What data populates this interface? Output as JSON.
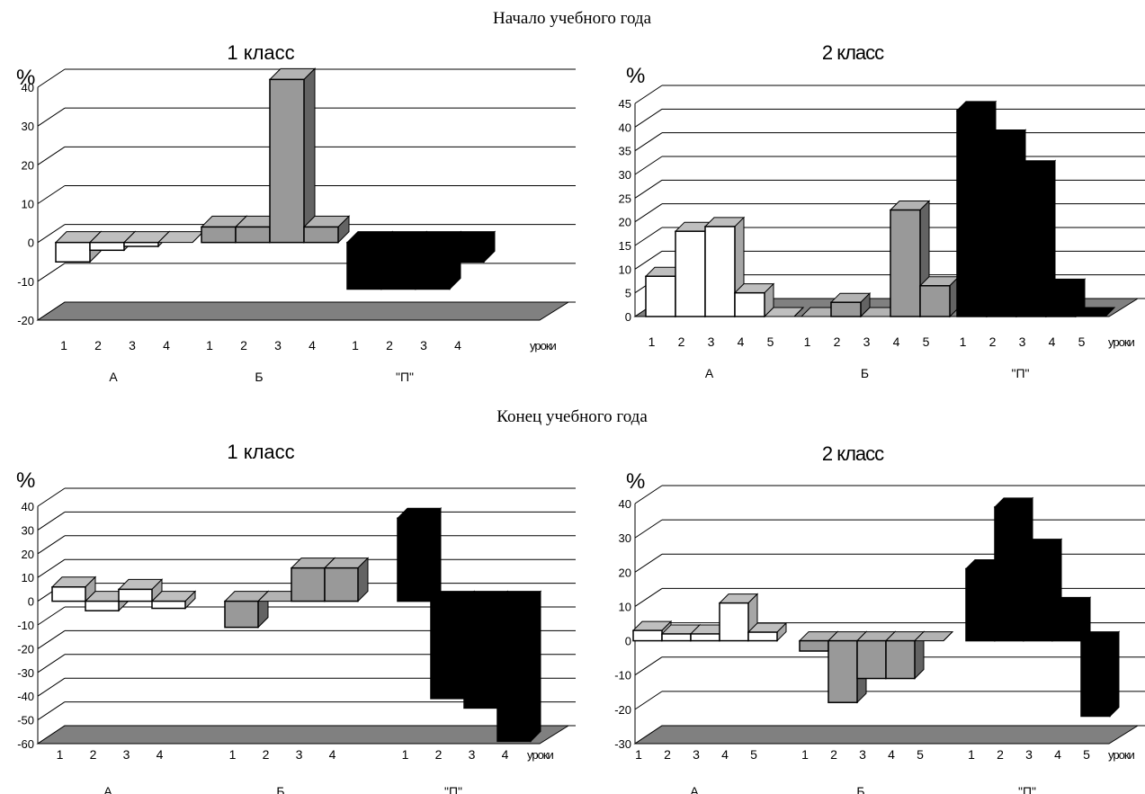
{
  "sections": {
    "start": "Начало учебного года",
    "end": "Конец учебного года"
  },
  "colors": {
    "A": "#ffffff",
    "B": "#999999",
    "P": "#000000",
    "floor": "#808080"
  },
  "chart_data": [
    {
      "type": "bar",
      "title": "1 класс",
      "ylabel": "%",
      "xlabel": "уроки",
      "ylim": [
        -20,
        40
      ],
      "ticks": [
        "40",
        "30",
        "20",
        "10",
        "0",
        "-10",
        "-20"
      ],
      "categories": [
        "1",
        "2",
        "3",
        "4"
      ],
      "series": [
        {
          "name": "А",
          "values": [
            -5,
            -2,
            -1,
            0
          ]
        },
        {
          "name": "Б",
          "values": [
            4,
            4,
            42,
            4
          ]
        },
        {
          "name": "\"П\"",
          "values": [
            -12,
            -12,
            -12,
            -5
          ]
        }
      ]
    },
    {
      "type": "bar",
      "title": "2 класс",
      "ylabel": "%",
      "xlabel": "уроки",
      "ylim": [
        0,
        45
      ],
      "ticks": [
        "45",
        "40",
        "35",
        "30",
        "25",
        "20",
        "15",
        "10",
        "5",
        "0"
      ],
      "categories": [
        "1",
        "2",
        "3",
        "4",
        "5"
      ],
      "series": [
        {
          "name": "А",
          "values": [
            8.5,
            18,
            19,
            5,
            0
          ]
        },
        {
          "name": "Б",
          "values": [
            0,
            3,
            0,
            22.5,
            6.5
          ]
        },
        {
          "name": "\"П\"",
          "values": [
            43.5,
            37.5,
            31,
            6,
            0
          ]
        }
      ]
    },
    {
      "type": "bar",
      "title": "1 класс",
      "ylabel": "%",
      "xlabel": "уроки",
      "ylim": [
        -60,
        40
      ],
      "ticks": [
        "40",
        "30",
        "20",
        "10",
        "0",
        "-10",
        "-20",
        "-30",
        "-40",
        "-50",
        "-60"
      ],
      "categories": [
        "1",
        "2",
        "3",
        "4"
      ],
      "series": [
        {
          "name": "А",
          "values": [
            6,
            -4,
            5,
            -3
          ]
        },
        {
          "name": "Б",
          "values": [
            -11,
            0,
            14,
            14
          ]
        },
        {
          "name": "\"П\"",
          "values": [
            35,
            -41,
            -45,
            -59
          ]
        }
      ]
    },
    {
      "type": "bar",
      "title": "2 класс",
      "ylabel": "%",
      "xlabel": "уроки",
      "ylim": [
        -30,
        40
      ],
      "ticks": [
        "40",
        "30",
        "20",
        "10",
        "0",
        "-10",
        "-20",
        "-30"
      ],
      "categories": [
        "1",
        "2",
        "3",
        "4",
        "5"
      ],
      "series": [
        {
          "name": "А",
          "values": [
            3,
            2,
            2,
            11,
            2.5
          ]
        },
        {
          "name": "Б",
          "values": [
            -3,
            -18,
            -11,
            -11,
            0
          ]
        },
        {
          "name": "\"П\"",
          "values": [
            21,
            39,
            27,
            10,
            -22
          ]
        }
      ]
    }
  ]
}
